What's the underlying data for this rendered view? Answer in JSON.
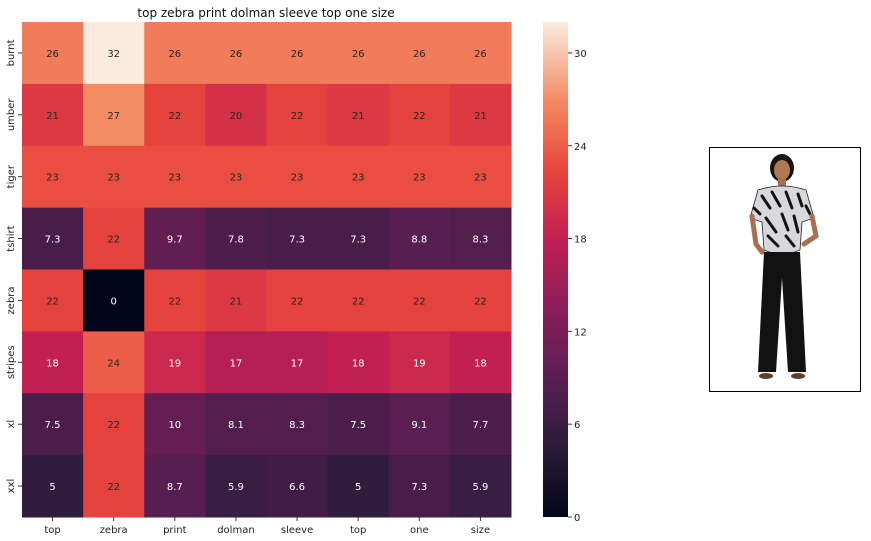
{
  "chart_data": {
    "type": "heatmap",
    "title": "top  zebra print dolman sleeve top one size",
    "x_labels": [
      "top",
      "zebra",
      "print",
      "dolman",
      "sleeve",
      "top",
      "one",
      "size"
    ],
    "y_labels": [
      "burnt",
      "umber",
      "tiger",
      "tshirt",
      "zebra",
      "stripes",
      "xl",
      "xxl"
    ],
    "values": [
      [
        26,
        32,
        26,
        26,
        26,
        26,
        26,
        26
      ],
      [
        21,
        27,
        22,
        20,
        22,
        21,
        22,
        21
      ],
      [
        23,
        23,
        23,
        23,
        23,
        23,
        23,
        23
      ],
      [
        7.3,
        22,
        9.7,
        7.8,
        7.3,
        7.3,
        8.8,
        8.3
      ],
      [
        22,
        0,
        22,
        21,
        22,
        22,
        22,
        22
      ],
      [
        18,
        24,
        19,
        17,
        17,
        18,
        19,
        18
      ],
      [
        7.5,
        22,
        10,
        8.1,
        8.3,
        7.5,
        9.1,
        7.7
      ],
      [
        5,
        22,
        8.7,
        5.9,
        6.6,
        5,
        7.3,
        5.9
      ]
    ],
    "cell_labels": [
      [
        "26",
        "32",
        "26",
        "26",
        "26",
        "26",
        "26",
        "26"
      ],
      [
        "21",
        "27",
        "22",
        "20",
        "22",
        "21",
        "22",
        "21"
      ],
      [
        "23",
        "23",
        "23",
        "23",
        "23",
        "23",
        "23",
        "23"
      ],
      [
        "7.3",
        "22",
        "9.7",
        "7.8",
        "7.3",
        "7.3",
        "8.8",
        "8.3"
      ],
      [
        "22",
        "0",
        "22",
        "21",
        "22",
        "22",
        "22",
        "22"
      ],
      [
        "18",
        "24",
        "19",
        "17",
        "17",
        "18",
        "19",
        "18"
      ],
      [
        "7.5",
        "22",
        "10",
        "8.1",
        "8.3",
        "7.5",
        "9.1",
        "7.7"
      ],
      [
        "5",
        "22",
        "8.7",
        "5.9",
        "6.6",
        "5",
        "7.3",
        "5.9"
      ]
    ],
    "vmin": 0,
    "vmax": 32,
    "colormap": "rocket",
    "colorbar_ticks": [
      0,
      6,
      12,
      18,
      24,
      30
    ],
    "colorbar_tick_labels": [
      "0",
      "6",
      "12",
      "18",
      "24",
      "30"
    ],
    "grid": false
  },
  "image_panel": {
    "icon": "product-photo-zebra-print-dolman-top"
  }
}
